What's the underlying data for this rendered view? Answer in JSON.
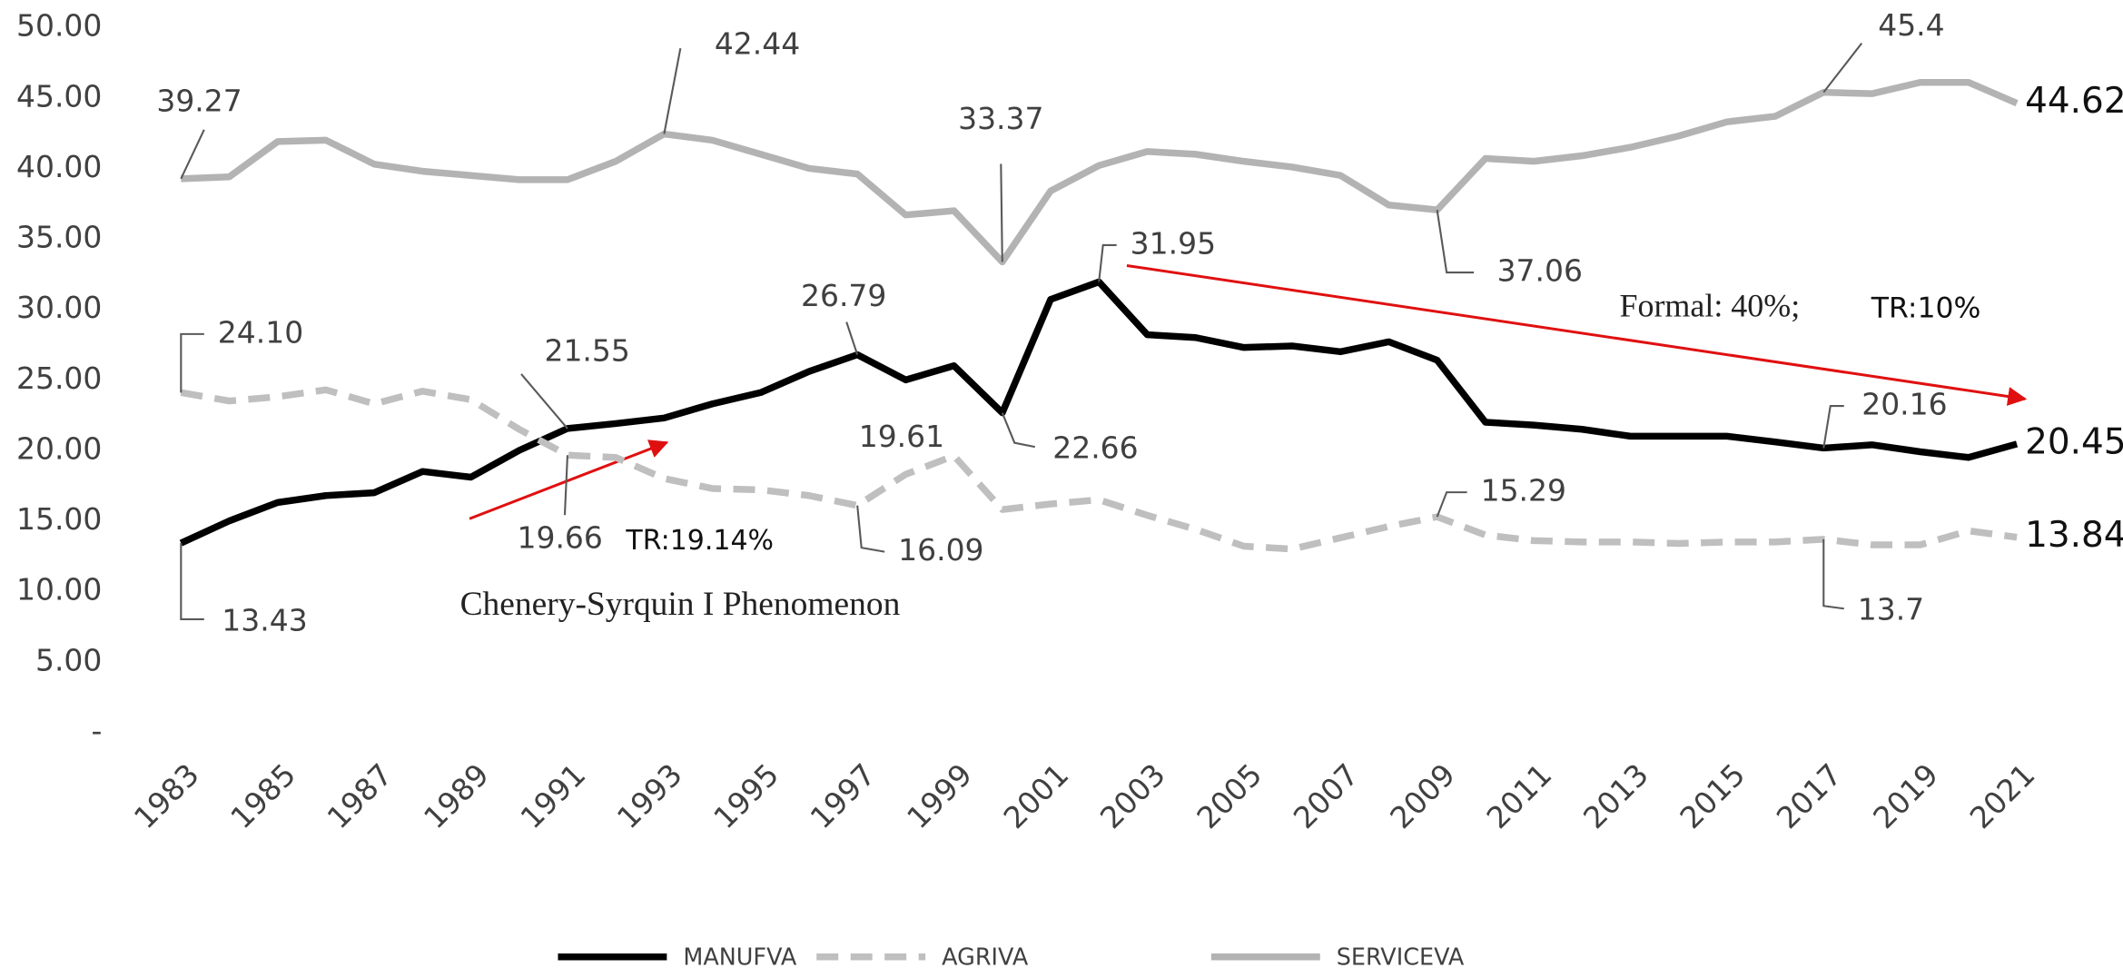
{
  "chart_data": {
    "type": "line",
    "categories": [
      "1983",
      null,
      "1985",
      null,
      "1987",
      null,
      "1989",
      null,
      "1991",
      null,
      "1993",
      null,
      "1995",
      null,
      "1997",
      null,
      "1999",
      null,
      "2001",
      null,
      "2003",
      null,
      "2005",
      null,
      "2007",
      null,
      "2009",
      null,
      "2011",
      null,
      "2013",
      null,
      "2015",
      null,
      "2017",
      null,
      "2019",
      null,
      "2021"
    ],
    "series": [
      {
        "name": "MANUFVA",
        "color": "#000000",
        "line_style": "solid",
        "values": [
          13.43,
          15.0,
          16.3,
          16.8,
          17.0,
          18.5,
          18.1,
          20.0,
          21.55,
          21.9,
          22.3,
          23.3,
          24.1,
          25.6,
          26.79,
          25.0,
          26.0,
          22.66,
          30.7,
          31.95,
          28.2,
          28.0,
          27.3,
          27.4,
          27.0,
          27.7,
          26.4,
          22.0,
          21.8,
          21.5,
          21.0,
          21.0,
          21.0,
          20.6,
          20.16,
          20.4,
          19.9,
          19.5,
          20.45
        ],
        "value_labels": [
          "13.43",
          null,
          null,
          null,
          null,
          null,
          null,
          null,
          "21.55",
          null,
          null,
          null,
          null,
          null,
          "26.79",
          null,
          null,
          "22.66",
          null,
          "31.95",
          null,
          null,
          null,
          null,
          null,
          null,
          null,
          null,
          null,
          null,
          null,
          null,
          null,
          null,
          "20.16",
          null,
          null,
          null,
          "20.45"
        ]
      },
      {
        "name": "AGRIVA",
        "color": "#bfbfbf",
        "line_style": "dashed",
        "values": [
          24.1,
          23.5,
          23.8,
          24.3,
          23.3,
          24.2,
          23.6,
          21.5,
          19.66,
          19.5,
          18.0,
          17.3,
          17.2,
          16.8,
          16.09,
          18.3,
          19.61,
          15.8,
          16.2,
          16.5,
          15.4,
          14.4,
          13.2,
          13.0,
          13.8,
          14.6,
          15.29,
          14.0,
          13.6,
          13.5,
          13.5,
          13.4,
          13.5,
          13.5,
          13.7,
          13.3,
          13.3,
          14.3,
          13.84
        ],
        "value_labels": [
          "24.10",
          null,
          null,
          null,
          null,
          null,
          null,
          null,
          "19.66",
          null,
          null,
          null,
          null,
          null,
          "16.09",
          null,
          "19.61",
          null,
          null,
          null,
          null,
          null,
          null,
          null,
          null,
          null,
          "15.29",
          null,
          null,
          null,
          null,
          null,
          null,
          null,
          "13.7",
          null,
          null,
          null,
          "13.84"
        ]
      },
      {
        "name": "SERVICEVA",
        "color": "#b3b3b3",
        "line_style": "solid",
        "values": [
          39.27,
          39.4,
          41.9,
          42.0,
          40.3,
          39.8,
          39.5,
          39.2,
          39.2,
          40.5,
          42.44,
          42.0,
          41.0,
          40.0,
          39.6,
          36.7,
          37.0,
          33.37,
          38.4,
          40.2,
          41.2,
          41.0,
          40.5,
          40.1,
          39.5,
          37.4,
          37.06,
          40.7,
          40.5,
          40.9,
          41.5,
          42.3,
          43.3,
          43.7,
          45.4,
          45.3,
          46.1,
          46.1,
          44.62
        ],
        "value_labels": [
          "39.27",
          null,
          null,
          null,
          null,
          null,
          null,
          null,
          null,
          null,
          "42.44",
          null,
          null,
          null,
          null,
          null,
          null,
          "33.37",
          null,
          null,
          null,
          null,
          null,
          null,
          null,
          null,
          "37.06",
          null,
          null,
          null,
          null,
          null,
          null,
          null,
          "45.4",
          null,
          null,
          null,
          "44.62"
        ]
      }
    ],
    "ylim": [
      0,
      50
    ],
    "yticks": [
      {
        "value": 0,
        "label": "-"
      },
      {
        "value": 5,
        "label": "5.00"
      },
      {
        "value": 10,
        "label": "10.00"
      },
      {
        "value": 15,
        "label": "15.00"
      },
      {
        "value": 20,
        "label": "20.00"
      },
      {
        "value": 25,
        "label": "25.00"
      },
      {
        "value": 30,
        "label": "30.00"
      },
      {
        "value": 35,
        "label": "35.00"
      },
      {
        "value": 40,
        "label": "40.00"
      },
      {
        "value": 45,
        "label": "45.00"
      },
      {
        "value": 50,
        "label": "50.00"
      }
    ],
    "grid": false,
    "legend": "bottom",
    "annotations": [
      "TR:19.14%",
      "Chenery-Syrquin I Phenomenon",
      "Formal: 40%;",
      "TR:10%"
    ]
  }
}
